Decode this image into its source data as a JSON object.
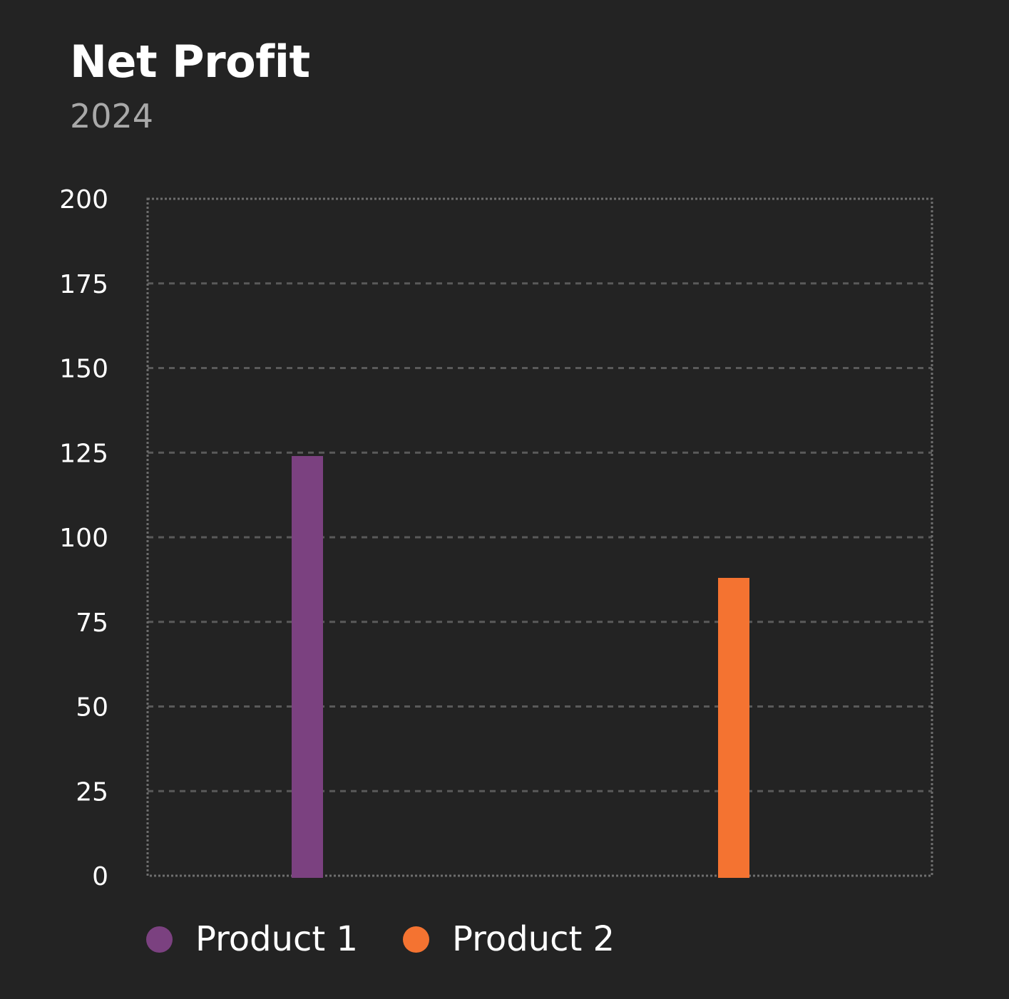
{
  "header": {
    "title": "Net Profit",
    "subtitle": "2024"
  },
  "chart_data": {
    "type": "bar",
    "title": "Net Profit",
    "subtitle": "2024",
    "xlabel": "",
    "ylabel": "",
    "ylim": [
      0,
      200
    ],
    "y_ticks": [
      "0",
      "25",
      "50",
      "75",
      "100",
      "125",
      "150",
      "175",
      "200"
    ],
    "grid": true,
    "legend_position": "bottom-left",
    "series": [
      {
        "name": "Product 1",
        "value": 124,
        "color": "#7b4180"
      },
      {
        "name": "Product 2",
        "value": 88,
        "color": "#f47331"
      }
    ]
  }
}
